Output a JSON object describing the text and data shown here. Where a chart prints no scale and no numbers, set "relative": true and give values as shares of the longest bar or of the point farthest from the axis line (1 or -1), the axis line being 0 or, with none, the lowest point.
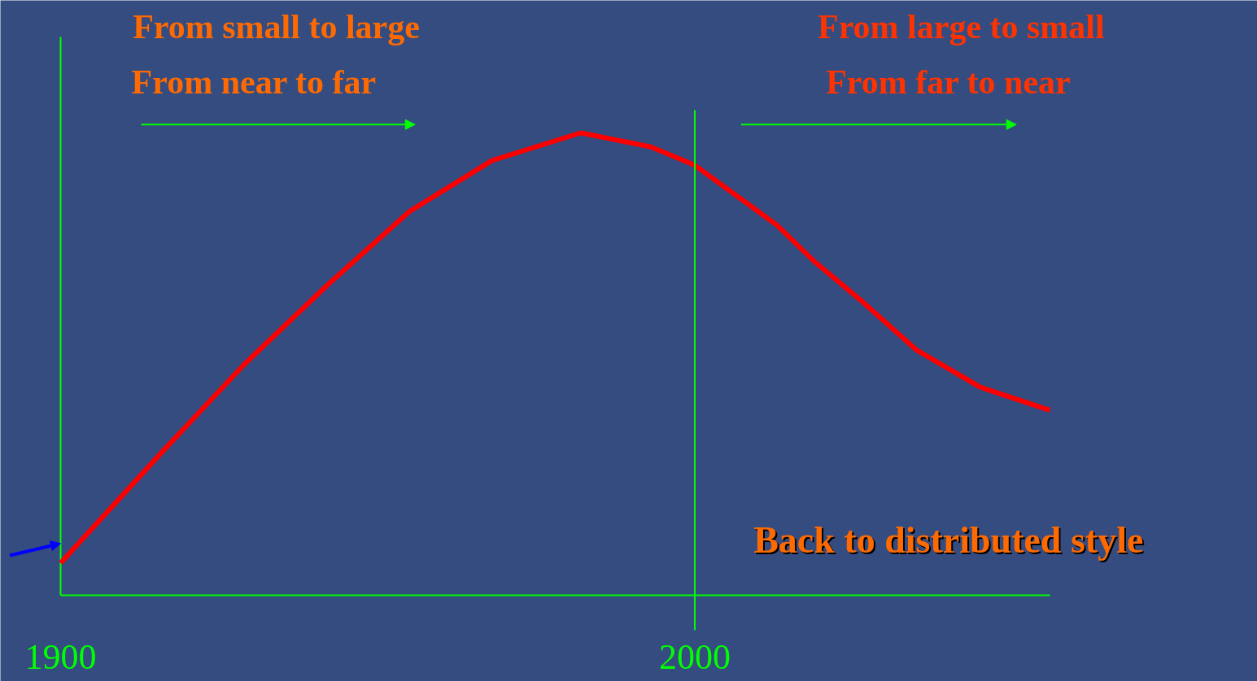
{
  "chart_data": {
    "type": "line",
    "relative": true,
    "x": [
      1900,
      1916,
      1929,
      1942,
      1955,
      1968,
      1982,
      1993,
      2000,
      2013,
      2019,
      2026,
      2035,
      2045,
      2056
    ],
    "series": [
      {
        "color": "#ff0000",
        "values": [
          0.07,
          0.31,
          0.5,
          0.67,
          0.83,
          0.94,
          1.0,
          0.97,
          0.93,
          0.8,
          0.72,
          0.64,
          0.53,
          0.45,
          0.4
        ]
      }
    ],
    "xlim": [
      1900,
      2056
    ],
    "xticks": [
      1900,
      2000
    ],
    "ref_lines": [
      {
        "axis": "x",
        "value": 2000,
        "color": "#00ff00"
      }
    ],
    "annotations": [
      "From small to large",
      "From near to far",
      "From large to small",
      "From far to near",
      "Back to distributed style"
    ],
    "grid": false,
    "marker": "none",
    "line_style": "solid"
  }
}
